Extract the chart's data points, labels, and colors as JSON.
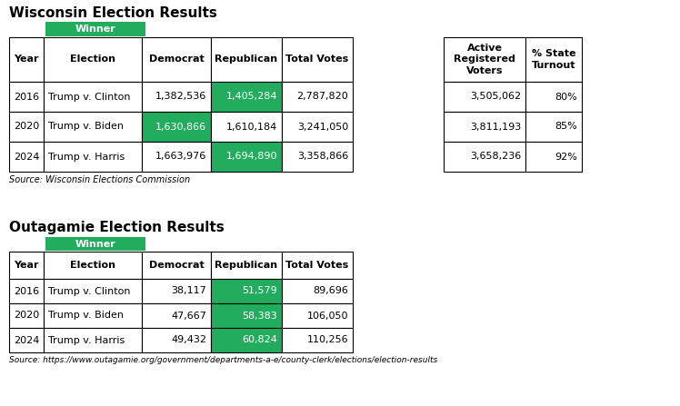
{
  "title1": "Wisconsin Election Results",
  "title2": "Outagamie Election Results",
  "winner_label": "Winner",
  "green_color": "#22ac5e",
  "white_text": "#ffffff",
  "bg_color": "#ffffff",
  "text_color": "#000000",
  "border_color": "#000000",
  "wi_headers": [
    "Year",
    "Election",
    "Democrat",
    "Republican",
    "Total Votes"
  ],
  "wi_rows": [
    [
      "2016",
      "Trump v. Clinton",
      "1,382,536",
      "1,405,284",
      "2,787,820",
      "3,505,062",
      "80%"
    ],
    [
      "2020",
      "Trump v. Biden",
      "1,630,866",
      "1,610,184",
      "3,241,050",
      "3,811,193",
      "85%"
    ],
    [
      "2024",
      "Trump v. Harris",
      "1,663,976",
      "1,694,890",
      "3,358,866",
      "3,658,236",
      "92%"
    ]
  ],
  "wi_winner_col": [
    3,
    2,
    3
  ],
  "wi_extra_headers": [
    "Active\nRegistered\nVoters",
    "% State\nTurnout"
  ],
  "source1": "Source: Wisconsin Elections Commission",
  "out_headers": [
    "Year",
    "Election",
    "Democrat",
    "Republican",
    "Total Votes"
  ],
  "out_rows": [
    [
      "2016",
      "Trump v. Clinton",
      "38,117",
      "51,579",
      "89,696"
    ],
    [
      "2020",
      "Trump v. Biden",
      "47,667",
      "58,383",
      "106,050"
    ],
    [
      "2024",
      "Trump v. Harris",
      "49,432",
      "60,824",
      "110,256"
    ]
  ],
  "out_winner_col": [
    3,
    3,
    3
  ],
  "source2": "Source: https://www.outagamie.org/government/departments-a-e/county-clerk/elections/election-results"
}
